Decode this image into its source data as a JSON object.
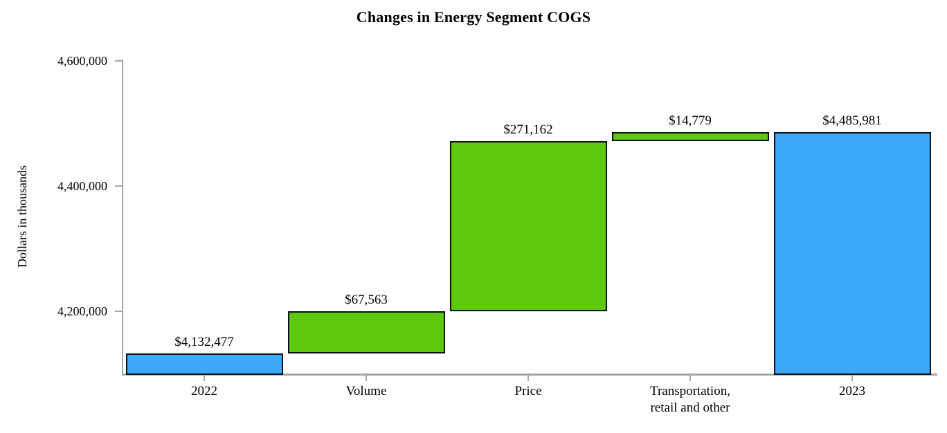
{
  "chart_data": {
    "type": "bar",
    "subtype": "waterfall",
    "title": "Changes in Energy Segment COGS",
    "xlabel": "",
    "ylabel": "Dollars in thousands",
    "ylim": [
      4100000,
      4600000
    ],
    "grid": false,
    "legend": false,
    "yticks": [
      {
        "value": 4200000,
        "label": "4,200,000"
      },
      {
        "value": 4400000,
        "label": "4,400,000"
      },
      {
        "value": 4600000,
        "label": "4,600,000"
      }
    ],
    "categories": [
      "2022",
      "Volume",
      "Price",
      "Transportation, retail and other",
      "2023"
    ],
    "bars": [
      {
        "id": "2022",
        "category_lines": [
          "2022"
        ],
        "role": "total",
        "value": 4132477,
        "start": 4100000,
        "end": 4132477,
        "label": "$4,132,477",
        "color_key": "total"
      },
      {
        "id": "volume",
        "category_lines": [
          "Volume"
        ],
        "role": "delta",
        "value": 67563,
        "start": 4132477,
        "end": 4200040,
        "label": "$67,563",
        "color_key": "delta"
      },
      {
        "id": "price",
        "category_lines": [
          "Price"
        ],
        "role": "delta",
        "value": 271162,
        "start": 4200040,
        "end": 4471202,
        "label": "$271,162",
        "color_key": "delta"
      },
      {
        "id": "transportation-retail-and-other",
        "category_lines": [
          "Transportation,",
          "retail and other"
        ],
        "role": "delta",
        "value": 14779,
        "start": 4471202,
        "end": 4485981,
        "label": "$14,779",
        "color_key": "delta"
      },
      {
        "id": "2023",
        "category_lines": [
          "2023"
        ],
        "role": "total",
        "value": 4485981,
        "start": 4100000,
        "end": 4485981,
        "label": "$4,485,981",
        "color_key": "total"
      }
    ],
    "colors": {
      "total": "#3ea9f8",
      "delta": "#5dc90c",
      "bar_border": "#0c0c14",
      "axis": "#a6a6a6",
      "text": "#000000"
    }
  }
}
